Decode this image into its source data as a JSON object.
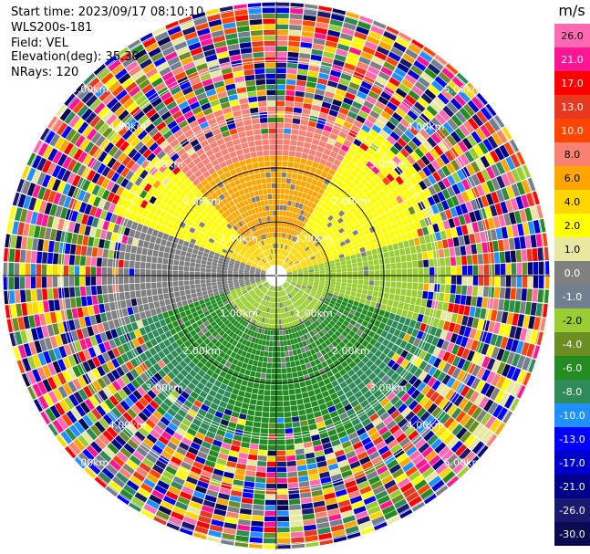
{
  "header": {
    "start_time": "Start time: 2023/09/17 08:10:10",
    "instrument": "WLS200s-181",
    "field": "Field: VEL",
    "elevation": "Elevation(deg): 35.30",
    "nrays": "NRays: 120"
  },
  "colorbar": {
    "unit": "m/s",
    "levels": [
      "26.0",
      "21.0",
      "17.0",
      "13.0",
      "10.0",
      "8.0",
      "6.0",
      "4.0",
      "2.0",
      "1.0",
      "0.0",
      "-1.0",
      "-2.0",
      "-4.0",
      "-6.0",
      "-8.0",
      "-10.0",
      "-13.0",
      "-17.0",
      "-21.0",
      "-26.0",
      "-30.0"
    ],
    "colors": [
      "#ff69b4",
      "#ff1493",
      "#ff0000",
      "#e8381f",
      "#ff4500",
      "#fa8072",
      "#ffa500",
      "#ffd700",
      "#ffff00",
      "#e8e8a0",
      "#808080",
      "#708090",
      "#9acd32",
      "#6b8e23",
      "#228b22",
      "#2e8b57",
      "#1e90ff",
      "#0000ff",
      "#0000cd",
      "#00008b",
      "#191970",
      "#0a0a50"
    ]
  },
  "chart_data": {
    "type": "ppi",
    "field": "VEL",
    "nrays": 120,
    "elevation_deg": 35.3,
    "range_rings_km": [
      1.0,
      2.0,
      3.0,
      4.0,
      5.0
    ],
    "range_labels": [
      "1.00km",
      "2.00km",
      "3.00km",
      "4.00km",
      "5.00km"
    ],
    "spokes": 12,
    "velocity_unit": "m/s"
  }
}
